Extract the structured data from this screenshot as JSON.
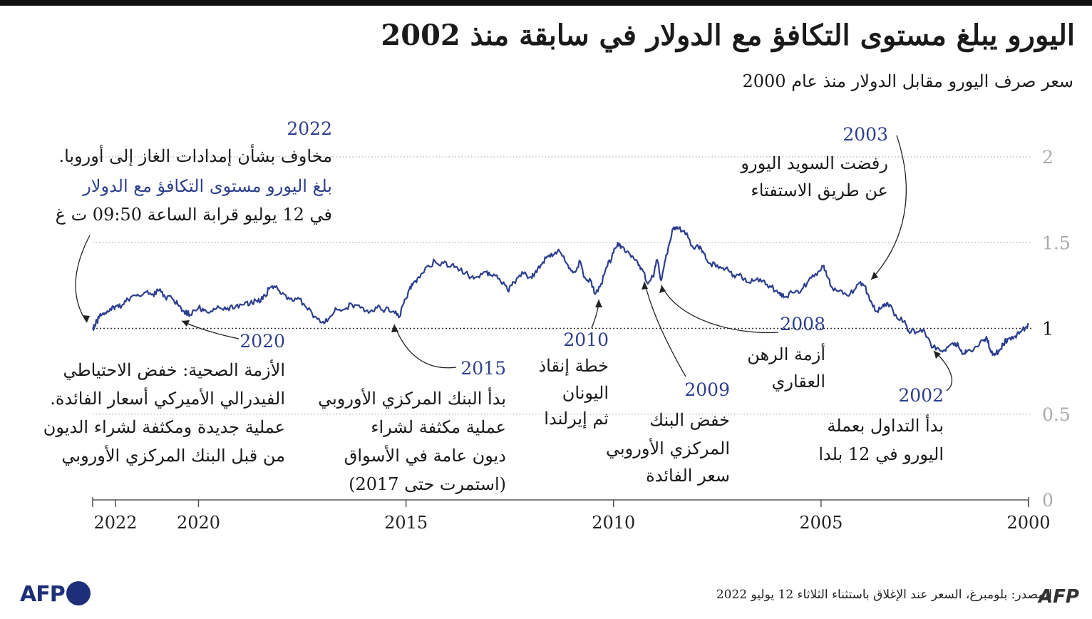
{
  "header": {
    "title": "اليورو يبلغ مستوى التكافؤ مع الدولار في سابقة منذ 2002",
    "subtitle": "سعر صرف اليورو مقابل الدولار منذ عام 2000"
  },
  "annotations": {
    "a2022": {
      "year": "2022",
      "line1": "مخاوف بشأن إمدادات الغاز إلى أوروبا.",
      "line2": "بلغ اليورو مستوى التكافؤ مع الدولار",
      "line3": "في 12 يوليو قرابة الساعة  09:50 ت غ"
    },
    "a2003": {
      "year": "2003",
      "line1": "رفضت السويد اليورو",
      "line2": "عن طريق الاستفتاء"
    },
    "a2020": {
      "year": "2020",
      "line1": "الأزمة الصحية: خفض الاحتياطي",
      "line2": "الفيدرالي الأميركي أسعار الفائدة.",
      "line3": "عملية جديدة ومكثفة لشراء الديون",
      "line4": "من قبل البنك المركزي الأوروبي"
    },
    "a2015": {
      "year": "2015",
      "line1": "بدأ البنك المركزي الأوروبي",
      "line2": "عملية مكثفة لشراء",
      "line3": "ديون عامة في الأسواق",
      "line4": "(استمرت حتى 2017)"
    },
    "a2010": {
      "year": "2010",
      "line1": "خطة إنقاذ",
      "line2": "اليونان",
      "line3": "ثم إيرلندا"
    },
    "a2009": {
      "year": "2009",
      "line1": "خفض البنك",
      "line2": "المركزي الأوروبي",
      "line3": "سعر الفائدة"
    },
    "a2008": {
      "year": "2008",
      "line1": "أزمة الرهن",
      "line2": "العقاري"
    },
    "a2002": {
      "year": "2002",
      "line1": "بدأ التداول بعملة",
      "line2": "اليورو في 12 بلدا"
    }
  },
  "footer": {
    "source": "المصدر: بلومبرغ، السعر عند الإغلاق باستثناء الثلاثاء 12 يوليو 2022",
    "logo_left": "AFP",
    "logo_right": "AFP"
  },
  "chart_data": {
    "type": "line",
    "x_direction": "reversed",
    "xlim": [
      2000.0,
      2022.55
    ],
    "ylim": [
      0,
      2
    ],
    "x_ticks": [
      {
        "value": 2000,
        "label": "2000"
      },
      {
        "value": 2005,
        "label": "2005"
      },
      {
        "value": 2010,
        "label": "2010"
      },
      {
        "value": 2015,
        "label": "2015"
      },
      {
        "value": 2020,
        "label": "2020"
      },
      {
        "value": 2022,
        "label": "2022"
      }
    ],
    "y_ticks": [
      {
        "value": 0,
        "label": "0"
      },
      {
        "value": 0.5,
        "label": "0.5"
      },
      {
        "value": 1,
        "label": "1"
      },
      {
        "value": 1.5,
        "label": "1.5"
      },
      {
        "value": 2,
        "label": "2"
      }
    ],
    "reference_line": 1,
    "colors": {
      "line": "#2c3f8f",
      "grid": "#999999",
      "axis": "#555555"
    },
    "series": [
      {
        "points": [
          [
            2000.0,
            1.03
          ],
          [
            2000.05,
            1.01
          ],
          [
            2000.2,
            0.98
          ],
          [
            2000.35,
            0.95
          ],
          [
            2000.5,
            0.94
          ],
          [
            2000.6,
            0.91
          ],
          [
            2000.7,
            0.87
          ],
          [
            2000.8,
            0.85
          ],
          [
            2000.9,
            0.86
          ],
          [
            2001.0,
            0.94
          ],
          [
            2001.1,
            0.93
          ],
          [
            2001.3,
            0.89
          ],
          [
            2001.5,
            0.86
          ],
          [
            2001.6,
            0.85
          ],
          [
            2001.7,
            0.91
          ],
          [
            2001.8,
            0.9
          ],
          [
            2001.95,
            0.89
          ],
          [
            2002.1,
            0.87
          ],
          [
            2002.3,
            0.89
          ],
          [
            2002.5,
            0.98
          ],
          [
            2002.7,
            0.98
          ],
          [
            2002.9,
            0.99
          ],
          [
            2003.0,
            1.04
          ],
          [
            2003.2,
            1.08
          ],
          [
            2003.4,
            1.15
          ],
          [
            2003.5,
            1.14
          ],
          [
            2003.65,
            1.1
          ],
          [
            2003.8,
            1.16
          ],
          [
            2003.95,
            1.25
          ],
          [
            2004.1,
            1.26
          ],
          [
            2004.3,
            1.2
          ],
          [
            2004.5,
            1.22
          ],
          [
            2004.7,
            1.22
          ],
          [
            2004.85,
            1.3
          ],
          [
            2004.95,
            1.36
          ],
          [
            2005.1,
            1.31
          ],
          [
            2005.3,
            1.28
          ],
          [
            2005.5,
            1.21
          ],
          [
            2005.7,
            1.21
          ],
          [
            2005.9,
            1.18
          ],
          [
            2006.0,
            1.21
          ],
          [
            2006.2,
            1.24
          ],
          [
            2006.4,
            1.28
          ],
          [
            2006.6,
            1.28
          ],
          [
            2006.8,
            1.27
          ],
          [
            2006.95,
            1.32
          ],
          [
            2007.1,
            1.31
          ],
          [
            2007.3,
            1.35
          ],
          [
            2007.5,
            1.37
          ],
          [
            2007.7,
            1.38
          ],
          [
            2007.85,
            1.45
          ],
          [
            2007.95,
            1.47
          ],
          [
            2008.1,
            1.48
          ],
          [
            2008.3,
            1.57
          ],
          [
            2008.45,
            1.58
          ],
          [
            2008.55,
            1.59
          ],
          [
            2008.65,
            1.5
          ],
          [
            2008.75,
            1.4
          ],
          [
            2008.85,
            1.28
          ],
          [
            2008.95,
            1.4
          ],
          [
            2009.05,
            1.3
          ],
          [
            2009.2,
            1.27
          ],
          [
            2009.3,
            1.34
          ],
          [
            2009.45,
            1.4
          ],
          [
            2009.6,
            1.43
          ],
          [
            2009.75,
            1.47
          ],
          [
            2009.9,
            1.5
          ],
          [
            2010.0,
            1.44
          ],
          [
            2010.15,
            1.36
          ],
          [
            2010.3,
            1.26
          ],
          [
            2010.45,
            1.2
          ],
          [
            2010.55,
            1.28
          ],
          [
            2010.7,
            1.3
          ],
          [
            2010.8,
            1.39
          ],
          [
            2010.95,
            1.33
          ],
          [
            2011.1,
            1.37
          ],
          [
            2011.3,
            1.45
          ],
          [
            2011.45,
            1.43
          ],
          [
            2011.6,
            1.42
          ],
          [
            2011.75,
            1.37
          ],
          [
            2011.9,
            1.32
          ],
          [
            2012.0,
            1.3
          ],
          [
            2012.2,
            1.33
          ],
          [
            2012.4,
            1.27
          ],
          [
            2012.55,
            1.22
          ],
          [
            2012.75,
            1.29
          ],
          [
            2012.95,
            1.31
          ],
          [
            2013.1,
            1.33
          ],
          [
            2013.3,
            1.3
          ],
          [
            2013.5,
            1.31
          ],
          [
            2013.7,
            1.34
          ],
          [
            2013.9,
            1.37
          ],
          [
            2014.1,
            1.38
          ],
          [
            2014.3,
            1.39
          ],
          [
            2014.5,
            1.36
          ],
          [
            2014.7,
            1.3
          ],
          [
            2014.85,
            1.25
          ],
          [
            2014.95,
            1.21
          ],
          [
            2015.05,
            1.15
          ],
          [
            2015.15,
            1.07
          ],
          [
            2015.3,
            1.1
          ],
          [
            2015.5,
            1.11
          ],
          [
            2015.7,
            1.12
          ],
          [
            2015.9,
            1.09
          ],
          [
            2016.1,
            1.12
          ],
          [
            2016.3,
            1.14
          ],
          [
            2016.5,
            1.11
          ],
          [
            2016.7,
            1.12
          ],
          [
            2016.85,
            1.06
          ],
          [
            2017.0,
            1.04
          ],
          [
            2017.2,
            1.07
          ],
          [
            2017.4,
            1.12
          ],
          [
            2017.6,
            1.18
          ],
          [
            2017.8,
            1.17
          ],
          [
            2018.0,
            1.2
          ],
          [
            2018.15,
            1.24
          ],
          [
            2018.3,
            1.23
          ],
          [
            2018.45,
            1.17
          ],
          [
            2018.6,
            1.16
          ],
          [
            2018.75,
            1.15
          ],
          [
            2018.9,
            1.14
          ],
          [
            2019.1,
            1.13
          ],
          [
            2019.3,
            1.12
          ],
          [
            2019.5,
            1.12
          ],
          [
            2019.7,
            1.1
          ],
          [
            2019.85,
            1.11
          ],
          [
            2020.0,
            1.12
          ],
          [
            2020.2,
            1.08
          ],
          [
            2020.35,
            1.1
          ],
          [
            2020.5,
            1.14
          ],
          [
            2020.65,
            1.18
          ],
          [
            2020.8,
            1.18
          ],
          [
            2020.95,
            1.22
          ],
          [
            2021.1,
            1.2
          ],
          [
            2021.3,
            1.21
          ],
          [
            2021.5,
            1.19
          ],
          [
            2021.7,
            1.17
          ],
          [
            2021.85,
            1.13
          ],
          [
            2022.0,
            1.13
          ],
          [
            2022.15,
            1.1
          ],
          [
            2022.3,
            1.09
          ],
          [
            2022.4,
            1.06
          ],
          [
            2022.5,
            1.02
          ],
          [
            2022.55,
            1.0
          ]
        ]
      }
    ]
  }
}
